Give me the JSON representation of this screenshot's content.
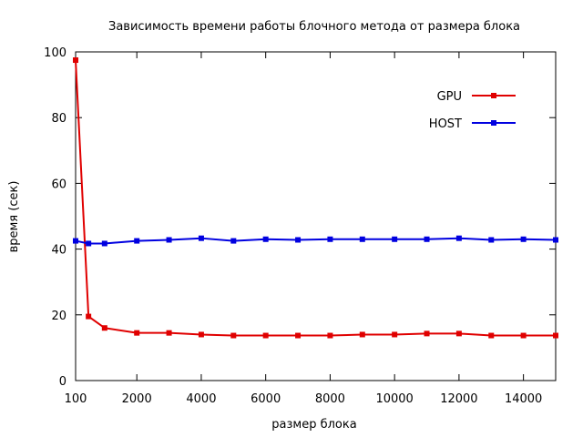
{
  "chart_data": {
    "type": "line",
    "title": "Зависимость времени работы блочного метода от размера блока",
    "xlabel": "размер блока",
    "ylabel": "время (сек)",
    "xlim": [
      100,
      15000
    ],
    "ylim": [
      0,
      100
    ],
    "xticks": [
      100,
      2000,
      4000,
      6000,
      8000,
      10000,
      12000,
      14000
    ],
    "xtick_labels": [
      "100",
      "2000",
      "4000",
      "6000",
      "8000",
      "10000",
      "12000",
      "14000"
    ],
    "yticks": [
      0,
      20,
      40,
      60,
      80,
      100
    ],
    "ytick_labels": [
      "0",
      "20",
      "40",
      "60",
      "80",
      "100"
    ],
    "grid": false,
    "legend_position": "top-right",
    "series": [
      {
        "name": "GPU",
        "color": "#e00000",
        "x": [
          100,
          500,
          1000,
          2000,
          3000,
          4000,
          5000,
          6000,
          7000,
          8000,
          9000,
          10000,
          11000,
          12000,
          13000,
          14000,
          15000
        ],
        "y": [
          97.5,
          19.5,
          16,
          14.5,
          14.5,
          14,
          13.7,
          13.7,
          13.7,
          13.7,
          14,
          14,
          14.3,
          14.3,
          13.7,
          13.7,
          13.7
        ]
      },
      {
        "name": "HOST",
        "color": "#0000e0",
        "x": [
          100,
          500,
          1000,
          2000,
          3000,
          4000,
          5000,
          6000,
          7000,
          8000,
          9000,
          10000,
          11000,
          12000,
          13000,
          14000,
          15000
        ],
        "y": [
          42.5,
          41.7,
          41.7,
          42.5,
          42.8,
          43.3,
          42.5,
          43,
          42.8,
          43,
          43,
          43,
          43,
          43.3,
          42.8,
          43,
          42.8
        ]
      }
    ]
  }
}
